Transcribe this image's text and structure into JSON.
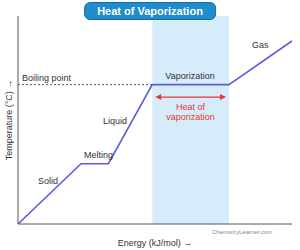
{
  "chart_data": {
    "type": "line",
    "title": "Heat of Vaporization",
    "x_label": "Energy (kJ/mol) →",
    "y_label": "Temperature (°C) →",
    "x": [
      0,
      23,
      33,
      49,
      77,
      100
    ],
    "values": [
      0,
      29,
      29,
      67,
      67,
      88
    ],
    "color": "#5b5be0",
    "xlim": [
      0,
      100
    ],
    "ylim": [
      0,
      100
    ],
    "tick_labels": false,
    "grid": false,
    "boiling_point": {
      "y": 67,
      "label": "Boiling point"
    },
    "heat_of_vaporization": {
      "x": [
        49,
        77
      ],
      "label": "Heat of vaporization"
    },
    "annotations": [
      "Solid",
      "Melting",
      "Liquid",
      "Vaporization",
      "Gas"
    ],
    "source": "ChemistryLearner.com"
  }
}
